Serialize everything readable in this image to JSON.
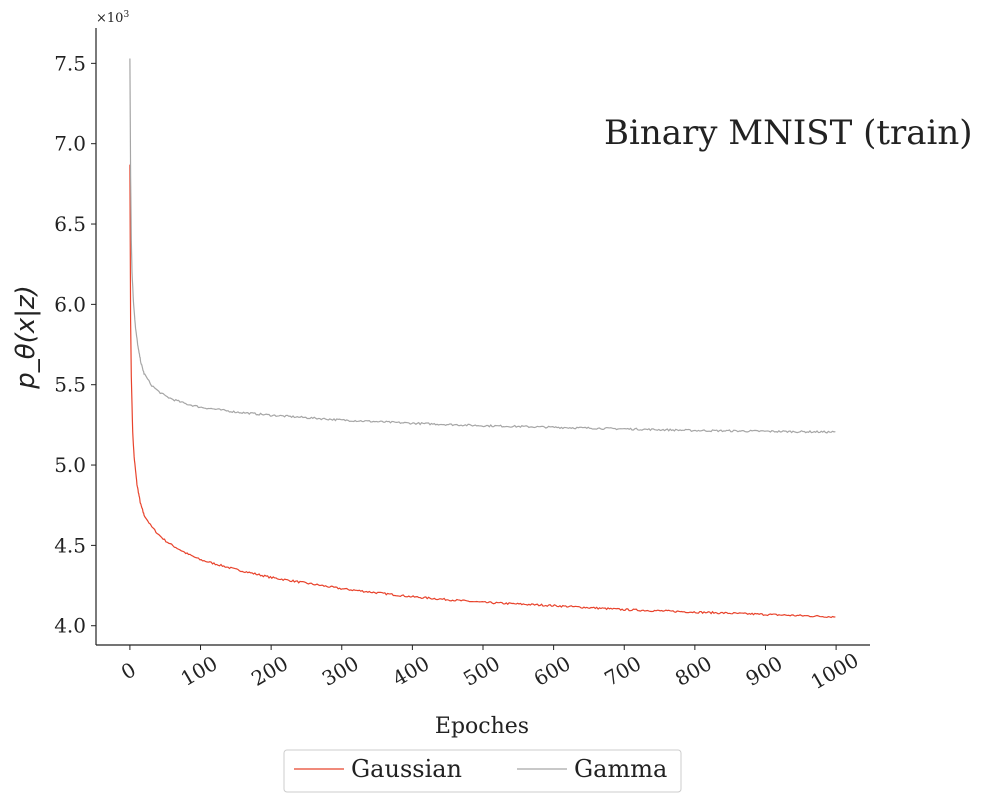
{
  "chart_data": {
    "type": "line",
    "title": "Binary MNIST (train)",
    "xlabel": "Epoches",
    "ylabel": "p_θ(x|z)",
    "y_multiplier_label": "×10",
    "y_multiplier_exponent": "3",
    "xlim": [
      -48,
      1048
    ],
    "ylim": [
      3.88,
      7.72
    ],
    "x_ticks": [
      0,
      100,
      200,
      300,
      400,
      500,
      600,
      700,
      800,
      900,
      1000
    ],
    "x_tick_labels": [
      "0",
      "100",
      "200",
      "300",
      "400",
      "500",
      "600",
      "700",
      "800",
      "900",
      "1000"
    ],
    "y_ticks": [
      4.0,
      4.5,
      5.0,
      5.5,
      6.0,
      6.5,
      7.0,
      7.5
    ],
    "y_tick_labels": [
      "4.0",
      "4.5",
      "5.0",
      "5.5",
      "6.0",
      "6.5",
      "7.0",
      "7.5"
    ],
    "grid": false,
    "legend_position": "bottom-center",
    "series": [
      {
        "name": "Gaussian",
        "color": "#e8432c",
        "x": [
          0,
          1,
          2,
          4,
          6,
          10,
          15,
          20,
          30,
          40,
          50,
          60,
          80,
          100,
          150,
          200,
          300,
          400,
          500,
          600,
          700,
          800,
          900,
          1000
        ],
        "y": [
          6.87,
          5.9,
          5.55,
          5.2,
          5.05,
          4.88,
          4.76,
          4.69,
          4.62,
          4.57,
          4.53,
          4.5,
          4.45,
          4.41,
          4.35,
          4.3,
          4.23,
          4.18,
          4.145,
          4.125,
          4.1,
          4.085,
          4.07,
          4.055
        ]
      },
      {
        "name": "Gamma",
        "color": "#a6a6a6",
        "x": [
          0,
          1,
          2,
          3,
          5,
          8,
          12,
          16,
          20,
          30,
          40,
          50,
          60,
          80,
          100,
          150,
          200,
          300,
          400,
          500,
          600,
          700,
          800,
          900,
          1000
        ],
        "y": [
          7.53,
          6.8,
          6.4,
          6.2,
          6.02,
          5.85,
          5.72,
          5.63,
          5.57,
          5.5,
          5.46,
          5.43,
          5.41,
          5.38,
          5.36,
          5.33,
          5.31,
          5.28,
          5.26,
          5.245,
          5.235,
          5.225,
          5.215,
          5.21,
          5.205
        ]
      }
    ]
  }
}
